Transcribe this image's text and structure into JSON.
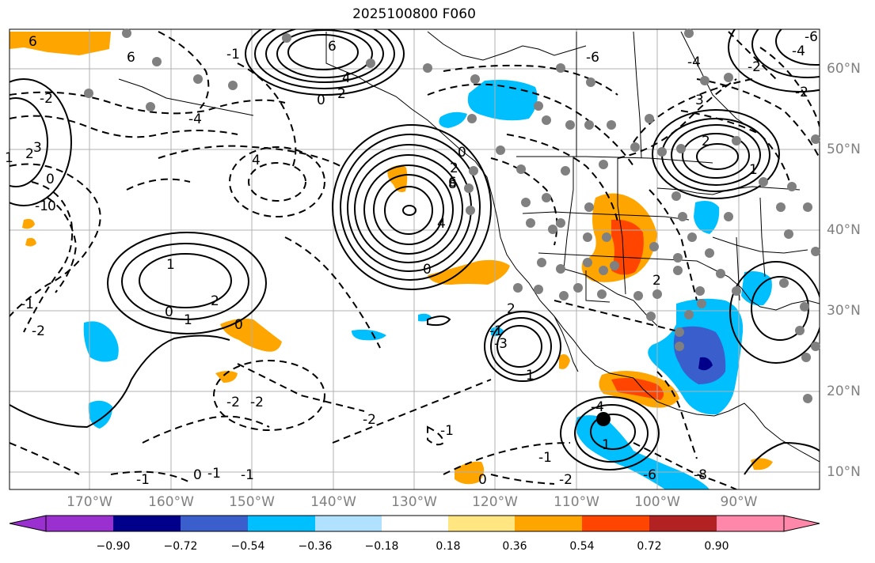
{
  "title": "2025100800 F060",
  "lat_labels": [
    "60°N",
    "50°N",
    "40°N",
    "30°N",
    "20°N",
    "10°N"
  ],
  "lon_labels": [
    "170°W",
    "160°W",
    "150°W",
    "140°W",
    "130°W",
    "120°W",
    "110°W",
    "100°W",
    "90°W"
  ],
  "colorbar": {
    "ticks": [
      "−0.90",
      "−0.72",
      "−0.54",
      "−0.36",
      "−0.18",
      "0.18",
      "0.36",
      "0.54",
      "0.72",
      "0.90"
    ],
    "colors": [
      "#9b30d0",
      "#00008b",
      "#3a5fcd",
      "#00bfff",
      "#b0e2ff",
      "#ffffff",
      "#ffe680",
      "#ffa500",
      "#ff4500",
      "#b22222",
      "#ff88aa"
    ],
    "extend": "both"
  },
  "contour_labels": [
    "6",
    "6",
    "4",
    "2",
    "0",
    "6",
    "8",
    "4",
    "2",
    "0",
    "-6",
    "-4",
    "-2",
    "-4",
    "-1",
    "3",
    "-2",
    "0",
    "1",
    "2",
    "2",
    "1",
    "0",
    "-1",
    "-2",
    "-2",
    "-6",
    "-4",
    "-2",
    "1",
    "2",
    "3",
    "4",
    "6",
    "0",
    "-1",
    "1",
    "-1",
    "0",
    "-1",
    "-2",
    "-1",
    "0",
    "-1",
    "-2",
    "-3",
    "-4",
    "-6",
    "-8",
    "2",
    "2",
    "-1",
    "0",
    "1",
    "-1",
    "1",
    "-2",
    "0"
  ],
  "colors": {
    "orange": "#ffa500",
    "red_orange": "#ff4500",
    "deep_sky_blue": "#00bfff",
    "royal_blue": "#3a5fcd",
    "navy": "#00008b",
    "station_dot": "#808080",
    "grid": "#b0b0b0"
  }
}
